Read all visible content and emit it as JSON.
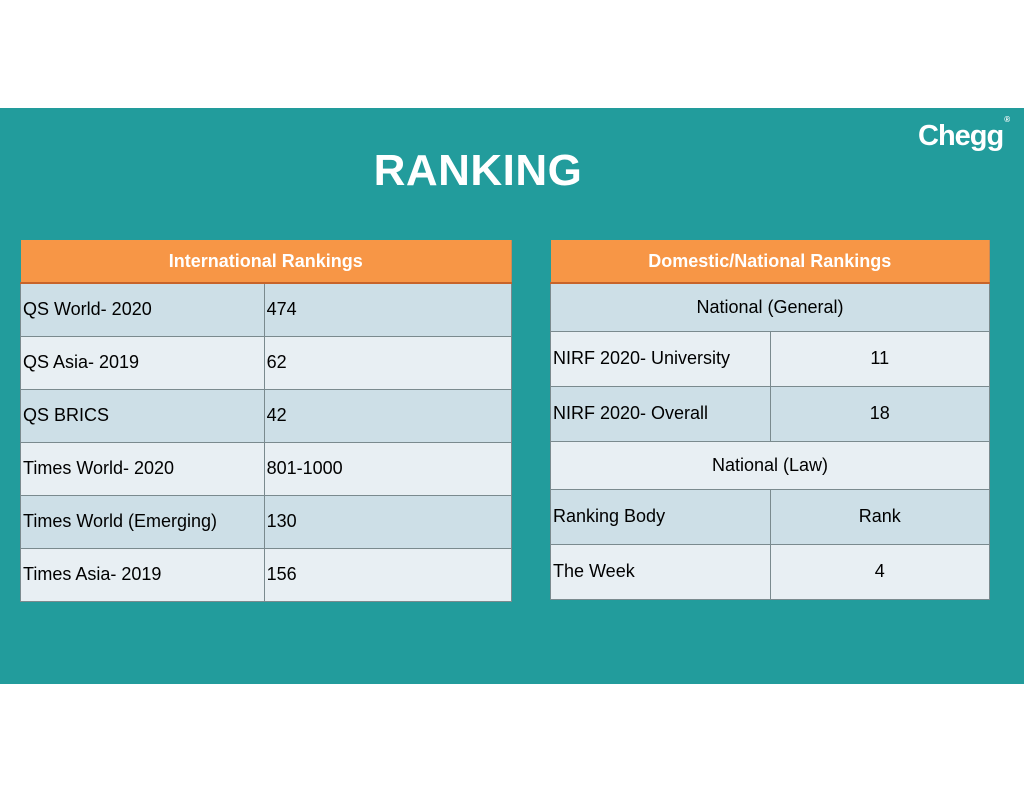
{
  "slide": {
    "title": "RANKING",
    "logo": "Chegg",
    "logo_mark": "®",
    "colors": {
      "background": "#229c9c",
      "header": "#f79646"
    }
  },
  "international": {
    "header": "International Rankings",
    "rows": [
      {
        "name": "QS World- 2020",
        "value": "474"
      },
      {
        "name": "QS Asia- 2019",
        "value": "62"
      },
      {
        "name": "QS BRICS",
        "value": "42"
      },
      {
        "name": "Times World- 2020",
        "value": "801-1000"
      },
      {
        "name": "Times World (Emerging)",
        "value": "130"
      },
      {
        "name": "Times Asia- 2019",
        "value": "156"
      }
    ]
  },
  "domestic": {
    "header": "Domestic/National Rankings",
    "general_label": "National (General)",
    "general_rows": [
      {
        "name": "NIRF 2020- University",
        "value": "11"
      },
      {
        "name": "NIRF 2020- Overall",
        "value": "18"
      }
    ],
    "law_label": "National (Law)",
    "law_header": {
      "name": "Ranking Body",
      "value": "Rank"
    },
    "law_rows": [
      {
        "name": "The Week",
        "value": "4"
      }
    ]
  }
}
